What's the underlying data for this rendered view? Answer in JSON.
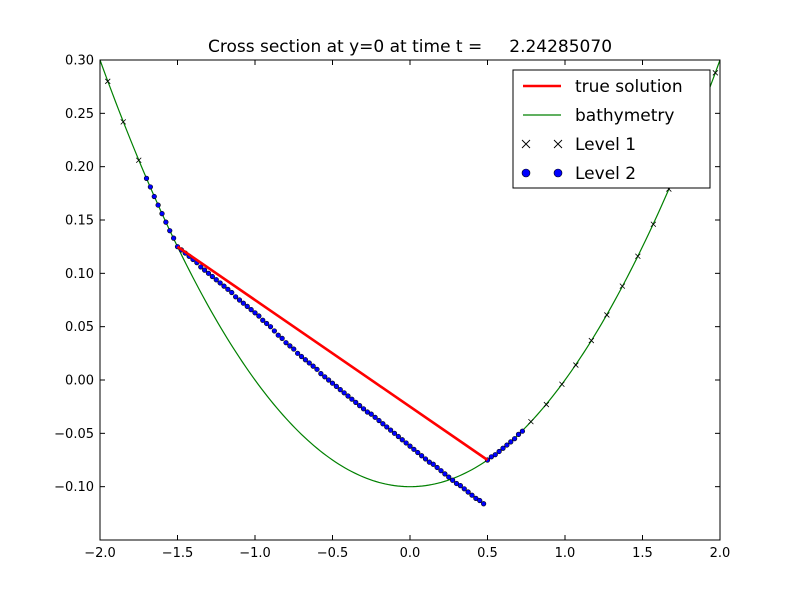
{
  "chart_data": {
    "type": "line",
    "title": "Cross section at y=0 at time t =     2.24285070",
    "xlabel": "",
    "ylabel": "",
    "xlim": [
      -2.0,
      2.0
    ],
    "ylim": [
      -0.15,
      0.3
    ],
    "x_ticks": [
      -2.0,
      -1.5,
      -1.0,
      -0.5,
      0.0,
      0.5,
      1.0,
      1.5,
      2.0
    ],
    "x_tick_labels": [
      "−2.0",
      "−1.5",
      "−1.0",
      "−0.5",
      "0.0",
      "0.5",
      "1.0",
      "1.5",
      "2.0"
    ],
    "y_ticks": [
      -0.1,
      -0.05,
      0.0,
      0.05,
      0.1,
      0.15,
      0.2,
      0.25,
      0.3
    ],
    "y_tick_labels": [
      "−0.10",
      "−0.05",
      "0.00",
      "0.05",
      "0.10",
      "0.15",
      "0.20",
      "0.25",
      "0.30"
    ],
    "grid": false,
    "legend_position": "top-right",
    "legend": [
      {
        "label": "true solution",
        "style": "thick-line",
        "color": "#ff0000"
      },
      {
        "label": "bathymetry",
        "style": "line",
        "color": "#008000"
      },
      {
        "label": "Level 1",
        "style": "x-marker",
        "color": "#000000"
      },
      {
        "label": "Level 2",
        "style": "dot-marker",
        "color": "#0000ff"
      }
    ],
    "series": [
      {
        "name": "true solution",
        "kind": "line",
        "color": "#ff0000",
        "x": [
          -1.5,
          0.5
        ],
        "y": [
          0.125,
          -0.075
        ]
      },
      {
        "name": "bathymetry",
        "kind": "line",
        "color": "#008000",
        "function": "0.1*x^2 - 0.1",
        "x_range": [
          -2.0,
          2.0
        ]
      },
      {
        "name": "Level 1",
        "kind": "scatter",
        "color": "#000000",
        "marker": "x",
        "x": [
          -1.95,
          -1.85,
          -1.75,
          0.78,
          0.88,
          0.98,
          1.07,
          1.17,
          1.27,
          1.37,
          1.47,
          1.57,
          1.67,
          1.77,
          1.87,
          1.97
        ],
        "y": [
          0.28,
          0.242,
          0.206,
          -0.039,
          -0.023,
          -0.004,
          0.014,
          0.037,
          0.061,
          0.088,
          0.116,
          0.146,
          0.179,
          0.213,
          0.25,
          0.288
        ]
      },
      {
        "name": "Level 2",
        "kind": "scatter",
        "color": "#0000ff",
        "marker": "o",
        "x": [
          -1.7,
          -1.675,
          -1.65,
          -1.625,
          -1.6,
          -1.575,
          -1.55,
          -1.525,
          -1.5,
          -1.475,
          -1.45,
          -1.425,
          -1.4,
          -1.375,
          -1.35,
          -1.325,
          -1.3,
          -1.275,
          -1.25,
          -1.225,
          -1.2,
          -1.175,
          -1.15,
          -1.125,
          -1.1,
          -1.075,
          -1.05,
          -1.025,
          -1.0,
          -0.975,
          -0.95,
          -0.925,
          -0.9,
          -0.875,
          -0.85,
          -0.825,
          -0.8,
          -0.775,
          -0.75,
          -0.725,
          -0.7,
          -0.675,
          -0.65,
          -0.625,
          -0.6,
          -0.575,
          -0.55,
          -0.525,
          -0.5,
          -0.475,
          -0.45,
          -0.425,
          -0.4,
          -0.375,
          -0.35,
          -0.325,
          -0.3,
          -0.275,
          -0.25,
          -0.225,
          -0.2,
          -0.175,
          -0.15,
          -0.125,
          -0.1,
          -0.075,
          -0.05,
          -0.025,
          0.0,
          0.025,
          0.05,
          0.075,
          0.1,
          0.125,
          0.15,
          0.175,
          0.2,
          0.225,
          0.25,
          0.275,
          0.3,
          0.325,
          0.35,
          0.375,
          0.4,
          0.425,
          0.45,
          0.475,
          0.5,
          0.525,
          0.55,
          0.575,
          0.6,
          0.625,
          0.65,
          0.675,
          0.7,
          0.725
        ],
        "y": [
          0.189,
          0.181,
          0.172,
          0.164,
          0.156,
          0.148,
          0.14,
          0.133,
          0.125,
          0.122,
          0.119,
          0.116,
          0.113,
          0.11,
          0.106,
          0.103,
          0.1,
          0.097,
          0.094,
          0.091,
          0.088,
          0.085,
          0.082,
          0.078,
          0.075,
          0.072,
          0.069,
          0.066,
          0.063,
          0.06,
          0.056,
          0.053,
          0.05,
          0.046,
          0.042,
          0.039,
          0.035,
          0.032,
          0.029,
          0.025,
          0.022,
          0.019,
          0.016,
          0.013,
          0.01,
          0.006,
          0.003,
          0.0,
          -0.003,
          -0.006,
          -0.009,
          -0.012,
          -0.015,
          -0.018,
          -0.021,
          -0.024,
          -0.027,
          -0.03,
          -0.032,
          -0.035,
          -0.038,
          -0.041,
          -0.044,
          -0.047,
          -0.05,
          -0.053,
          -0.056,
          -0.059,
          -0.062,
          -0.065,
          -0.068,
          -0.071,
          -0.074,
          -0.077,
          -0.079,
          -0.082,
          -0.085,
          -0.088,
          -0.091,
          -0.094,
          -0.097,
          -0.099,
          -0.102,
          -0.105,
          -0.108,
          -0.111,
          -0.113,
          -0.116,
          -0.075,
          -0.072,
          -0.07,
          -0.067,
          -0.064,
          -0.061,
          -0.058,
          -0.055,
          -0.051,
          -0.048
        ]
      }
    ]
  }
}
